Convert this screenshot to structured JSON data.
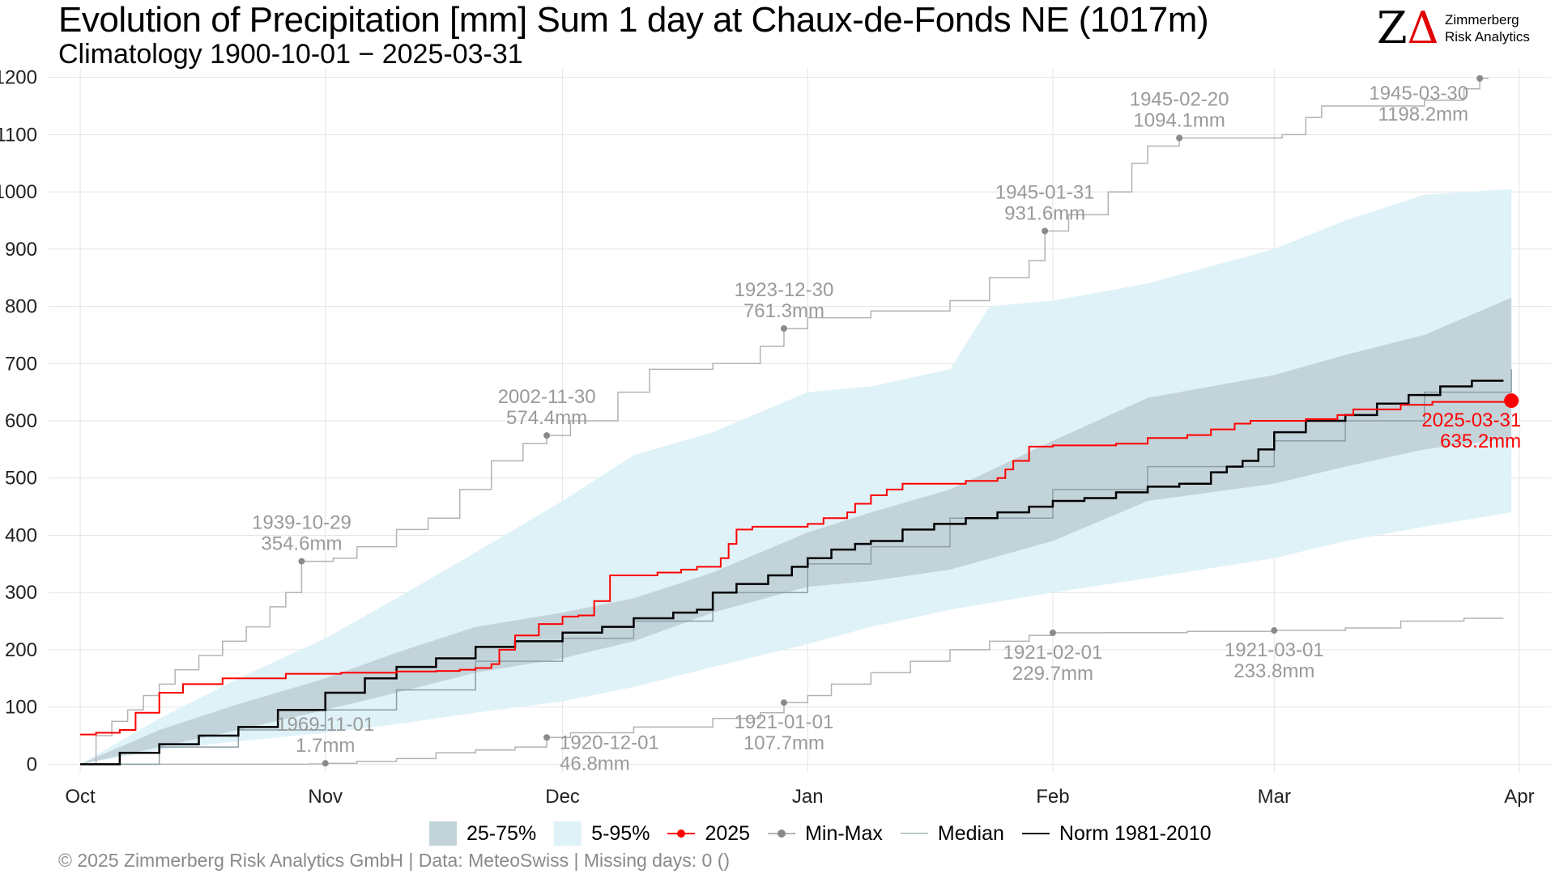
{
  "title": "Evolution of Precipitation [mm] Sum 1 day at Chaux-de-Fonds  NE (1017m)",
  "subtitle": "Climatology 1900-10-01 − 2025-03-31",
  "logo": {
    "mark": "ZΔ",
    "company_line1": "Zimmerberg",
    "company_line2": "Risk Analytics"
  },
  "footer": "©  2025 Zimmerberg Risk Analytics GmbH | Data: MeteoSwiss | Missing days: 0 ()",
  "legend": [
    {
      "label": "25-75%",
      "kind": "band-dark"
    },
    {
      "label": "5-95%",
      "kind": "band-light"
    },
    {
      "label": "2025",
      "kind": "line-dot-red"
    },
    {
      "label": "Min-Max",
      "kind": "line-dot-grey"
    },
    {
      "label": "Median",
      "kind": "line-grey"
    },
    {
      "label": "Norm 1981-2010",
      "kind": "line-black"
    }
  ],
  "colors": {
    "band_iqr": "#c3d3da",
    "band_p90": "#dff2f8",
    "current": "#ff0000",
    "minmax": "#b3b3b3",
    "median": "#8c9ea6",
    "norm": "#000000",
    "annotation": "#9a9a9a"
  },
  "chart_data": {
    "type": "line",
    "title": "Evolution of Precipitation [mm] Sum 1 day at Chaux-de-Fonds  NE (1017m)",
    "subtitle": "Climatology 1900-10-01 − 2025-03-31",
    "xlabel": "",
    "ylabel": "",
    "x_unit": "day of season (0 = Oct 1)",
    "xlim": [
      -4,
      186
    ],
    "ylim": [
      -15,
      1215
    ],
    "yticks": [
      0,
      100,
      200,
      300,
      400,
      500,
      600,
      700,
      800,
      900,
      1000,
      1100,
      1200
    ],
    "xticks": [
      {
        "day": 0,
        "label": "Oct"
      },
      {
        "day": 31,
        "label": "Nov"
      },
      {
        "day": 61,
        "label": "Dec"
      },
      {
        "day": 92,
        "label": "Jan"
      },
      {
        "day": 123,
        "label": "Feb"
      },
      {
        "day": 151,
        "label": "Mar"
      },
      {
        "day": 182,
        "label": "Apr"
      }
    ],
    "grid": true,
    "legend_position": "bottom",
    "bands": [
      {
        "name": "5-95%",
        "lower": [
          [
            0,
            0
          ],
          [
            10,
            25
          ],
          [
            20,
            40
          ],
          [
            31,
            55
          ],
          [
            40,
            70
          ],
          [
            50,
            90
          ],
          [
            61,
            110
          ],
          [
            70,
            135
          ],
          [
            80,
            170
          ],
          [
            92,
            210
          ],
          [
            100,
            240
          ],
          [
            110,
            270
          ],
          [
            123,
            300
          ],
          [
            135,
            325
          ],
          [
            151,
            360
          ],
          [
            160,
            390
          ],
          [
            170,
            415
          ],
          [
            181,
            440
          ]
        ],
        "upper": [
          [
            0,
            0
          ],
          [
            10,
            80
          ],
          [
            20,
            150
          ],
          [
            31,
            220
          ],
          [
            40,
            290
          ],
          [
            50,
            370
          ],
          [
            61,
            460
          ],
          [
            70,
            540
          ],
          [
            80,
            580
          ],
          [
            92,
            650
          ],
          [
            100,
            660
          ],
          [
            110,
            690
          ],
          [
            115,
            800
          ],
          [
            123,
            810
          ],
          [
            135,
            840
          ],
          [
            151,
            900
          ],
          [
            160,
            950
          ],
          [
            170,
            995
          ],
          [
            181,
            1005
          ]
        ]
      },
      {
        "name": "25-75%",
        "lower": [
          [
            0,
            0
          ],
          [
            10,
            30
          ],
          [
            20,
            60
          ],
          [
            31,
            95
          ],
          [
            40,
            125
          ],
          [
            50,
            160
          ],
          [
            61,
            185
          ],
          [
            70,
            215
          ],
          [
            80,
            265
          ],
          [
            92,
            310
          ],
          [
            100,
            320
          ],
          [
            110,
            340
          ],
          [
            123,
            390
          ],
          [
            135,
            460
          ],
          [
            151,
            490
          ],
          [
            160,
            520
          ],
          [
            170,
            550
          ],
          [
            181,
            570
          ]
        ],
        "upper": [
          [
            0,
            0
          ],
          [
            10,
            60
          ],
          [
            20,
            105
          ],
          [
            31,
            150
          ],
          [
            40,
            195
          ],
          [
            50,
            240
          ],
          [
            61,
            265
          ],
          [
            70,
            290
          ],
          [
            80,
            335
          ],
          [
            92,
            405
          ],
          [
            100,
            440
          ],
          [
            110,
            480
          ],
          [
            123,
            565
          ],
          [
            135,
            640
          ],
          [
            151,
            680
          ],
          [
            160,
            715
          ],
          [
            170,
            750
          ],
          [
            181,
            815
          ]
        ]
      }
    ],
    "series": [
      {
        "name": "2025",
        "points": [
          [
            0,
            52
          ],
          [
            2,
            55
          ],
          [
            5,
            60
          ],
          [
            7,
            90
          ],
          [
            10,
            125
          ],
          [
            13,
            140
          ],
          [
            18,
            150
          ],
          [
            26,
            158
          ],
          [
            33,
            160
          ],
          [
            40,
            162
          ],
          [
            45,
            163
          ],
          [
            48,
            165
          ],
          [
            50,
            168
          ],
          [
            52,
            175
          ],
          [
            53,
            200
          ],
          [
            55,
            225
          ],
          [
            58,
            245
          ],
          [
            61,
            258
          ],
          [
            63,
            260
          ],
          [
            65,
            285
          ],
          [
            67,
            330
          ],
          [
            73,
            335
          ],
          [
            76,
            340
          ],
          [
            78,
            345
          ],
          [
            81,
            360
          ],
          [
            82,
            385
          ],
          [
            83,
            410
          ],
          [
            85,
            415
          ],
          [
            91,
            415
          ],
          [
            92,
            420
          ],
          [
            94,
            430
          ],
          [
            97,
            440
          ],
          [
            98,
            455
          ],
          [
            100,
            470
          ],
          [
            102,
            480
          ],
          [
            104,
            490
          ],
          [
            112,
            495
          ],
          [
            116,
            500
          ],
          [
            117,
            515
          ],
          [
            118,
            530
          ],
          [
            120,
            555
          ],
          [
            123,
            557
          ],
          [
            131,
            560
          ],
          [
            135,
            570
          ],
          [
            140,
            575
          ],
          [
            143,
            585
          ],
          [
            146,
            595
          ],
          [
            148,
            600
          ],
          [
            151,
            600
          ],
          [
            155,
            603
          ],
          [
            159,
            610
          ],
          [
            161,
            620
          ],
          [
            167,
            628
          ],
          [
            171,
            633
          ],
          [
            181,
            635
          ]
        ]
      },
      {
        "name": "Norm 1981-2010",
        "points": [
          [
            0,
            0
          ],
          [
            5,
            20
          ],
          [
            10,
            35
          ],
          [
            15,
            50
          ],
          [
            20,
            65
          ],
          [
            25,
            95
          ],
          [
            31,
            125
          ],
          [
            36,
            150
          ],
          [
            40,
            170
          ],
          [
            45,
            185
          ],
          [
            50,
            205
          ],
          [
            55,
            215
          ],
          [
            61,
            230
          ],
          [
            66,
            240
          ],
          [
            70,
            255
          ],
          [
            75,
            265
          ],
          [
            78,
            270
          ],
          [
            80,
            300
          ],
          [
            83,
            315
          ],
          [
            87,
            330
          ],
          [
            90,
            345
          ],
          [
            92,
            360
          ],
          [
            95,
            375
          ],
          [
            98,
            385
          ],
          [
            100,
            390
          ],
          [
            104,
            410
          ],
          [
            108,
            420
          ],
          [
            112,
            430
          ],
          [
            116,
            440
          ],
          [
            120,
            450
          ],
          [
            123,
            460
          ],
          [
            127,
            465
          ],
          [
            131,
            475
          ],
          [
            135,
            485
          ],
          [
            139,
            490
          ],
          [
            143,
            510
          ],
          [
            145,
            520
          ],
          [
            147,
            530
          ],
          [
            149,
            550
          ],
          [
            151,
            580
          ],
          [
            155,
            600
          ],
          [
            160,
            610
          ],
          [
            164,
            630
          ],
          [
            168,
            645
          ],
          [
            172,
            660
          ],
          [
            176,
            670
          ],
          [
            180,
            670
          ]
        ]
      },
      {
        "name": "Median",
        "points": [
          [
            0,
            0
          ],
          [
            10,
            30
          ],
          [
            20,
            60
          ],
          [
            31,
            95
          ],
          [
            40,
            130
          ],
          [
            50,
            180
          ],
          [
            61,
            220
          ],
          [
            70,
            250
          ],
          [
            80,
            300
          ],
          [
            92,
            350
          ],
          [
            100,
            380
          ],
          [
            110,
            430
          ],
          [
            123,
            480
          ],
          [
            135,
            520
          ],
          [
            151,
            565
          ],
          [
            160,
            600
          ],
          [
            170,
            650
          ],
          [
            181,
            690
          ]
        ]
      },
      {
        "name": "Max",
        "points": [
          [
            0,
            0
          ],
          [
            2,
            50
          ],
          [
            4,
            75
          ],
          [
            6,
            95
          ],
          [
            8,
            120
          ],
          [
            10,
            140
          ],
          [
            12,
            165
          ],
          [
            15,
            190
          ],
          [
            18,
            215
          ],
          [
            21,
            240
          ],
          [
            24,
            275
          ],
          [
            26,
            300
          ],
          [
            28,
            354.6
          ],
          [
            32,
            360
          ],
          [
            35,
            380
          ],
          [
            40,
            410
          ],
          [
            44,
            430
          ],
          [
            48,
            480
          ],
          [
            52,
            530
          ],
          [
            56,
            560
          ],
          [
            59,
            574.4
          ],
          [
            62,
            600
          ],
          [
            68,
            650
          ],
          [
            72,
            690
          ],
          [
            80,
            700
          ],
          [
            86,
            730
          ],
          [
            89,
            761.3
          ],
          [
            92,
            780
          ],
          [
            100,
            792
          ],
          [
            110,
            810
          ],
          [
            115,
            850
          ],
          [
            120,
            880
          ],
          [
            122,
            931.6
          ],
          [
            125,
            960
          ],
          [
            130,
            1000
          ],
          [
            133,
            1050
          ],
          [
            135,
            1080
          ],
          [
            139,
            1094.1
          ],
          [
            152,
            1100
          ],
          [
            155,
            1130
          ],
          [
            157,
            1150
          ],
          [
            170,
            1160
          ],
          [
            175,
            1180
          ],
          [
            177,
            1198.2
          ],
          [
            178,
            1200
          ]
        ]
      },
      {
        "name": "Min",
        "points": [
          [
            0,
            0
          ],
          [
            20,
            0
          ],
          [
            29,
            0.5
          ],
          [
            31,
            1.7
          ],
          [
            35,
            5
          ],
          [
            40,
            10
          ],
          [
            45,
            20
          ],
          [
            50,
            25
          ],
          [
            55,
            30
          ],
          [
            59,
            46.8
          ],
          [
            62,
            55
          ],
          [
            70,
            65
          ],
          [
            80,
            80
          ],
          [
            86,
            90
          ],
          [
            89,
            107.7
          ],
          [
            92,
            120
          ],
          [
            95,
            140
          ],
          [
            100,
            160
          ],
          [
            105,
            180
          ],
          [
            110,
            200
          ],
          [
            115,
            215
          ],
          [
            120,
            225
          ],
          [
            123,
            229.7
          ],
          [
            130,
            230
          ],
          [
            140,
            232
          ],
          [
            151,
            233.8
          ],
          [
            160,
            238
          ],
          [
            167,
            250
          ],
          [
            175,
            255
          ],
          [
            180,
            255
          ]
        ]
      }
    ],
    "annotations": [
      {
        "series": "Max",
        "day": 28,
        "value": 354.6,
        "date": "1939-10-29",
        "text": "354.6mm",
        "anchor": "above"
      },
      {
        "series": "Max",
        "day": 59,
        "value": 574.4,
        "date": "2002-11-30",
        "text": "574.4mm",
        "anchor": "above"
      },
      {
        "series": "Max",
        "day": 89,
        "value": 761.3,
        "date": "1923-12-30",
        "text": "761.3mm",
        "anchor": "above"
      },
      {
        "series": "Max",
        "day": 122,
        "value": 931.6,
        "date": "1945-01-31",
        "text": "931.6mm",
        "anchor": "above"
      },
      {
        "series": "Max",
        "day": 139,
        "value": 1094.1,
        "date": "1945-02-20",
        "text": "1094.1mm",
        "anchor": "above"
      },
      {
        "series": "Max",
        "day": 177,
        "value": 1198.2,
        "date": "1945-03-30",
        "text": "1198.2mm",
        "anchor": "left-below"
      },
      {
        "series": "Min",
        "day": 31,
        "value": 1.7,
        "date": "1969-11-01",
        "text": "1.7mm",
        "anchor": "above"
      },
      {
        "series": "Min",
        "day": 59,
        "value": 46.8,
        "date": "1920-12-01",
        "text": "46.8mm",
        "anchor": "right"
      },
      {
        "series": "Min",
        "day": 89,
        "value": 107.7,
        "date": "1921-01-01",
        "text": "107.7mm",
        "anchor": "below"
      },
      {
        "series": "Min",
        "day": 123,
        "value": 229.7,
        "date": "1921-02-01",
        "text": "229.7mm",
        "anchor": "below"
      },
      {
        "series": "Min",
        "day": 151,
        "value": 233.8,
        "date": "1921-03-01",
        "text": "233.8mm",
        "anchor": "below"
      }
    ],
    "current_point": {
      "day": 181,
      "value": 635.2,
      "date": "2025-03-31",
      "text": "635.2mm"
    }
  }
}
